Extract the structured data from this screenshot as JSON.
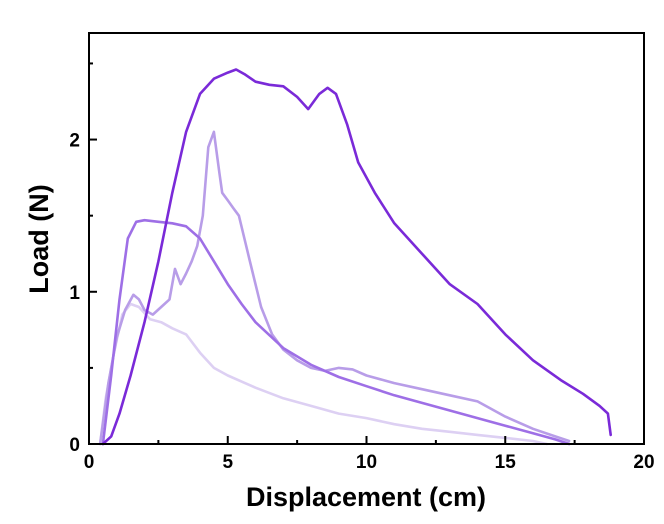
{
  "chart_data": {
    "type": "line",
    "title": "",
    "xlabel": "Displacement (cm)",
    "ylabel": "Load (N)",
    "xlim": [
      0,
      20
    ],
    "ylim": [
      0,
      2.7
    ],
    "xticks": [
      0,
      5,
      10,
      15,
      20
    ],
    "yticks": [
      0,
      1,
      2
    ],
    "grid": false,
    "legend": "none",
    "series": [
      {
        "color": "#ddd0f3",
        "x": [
          0.4,
          0.6,
          0.9,
          1.2,
          1.5,
          1.8,
          2.2,
          2.6,
          3.0,
          3.5,
          4.0,
          4.5,
          5.0,
          6.0,
          7.0,
          8.0,
          9.0,
          10.0,
          11.0,
          12.0,
          13.0,
          14.0,
          15.0,
          16.0,
          16.5
        ],
        "y": [
          0.0,
          0.3,
          0.6,
          0.85,
          0.92,
          0.9,
          0.82,
          0.8,
          0.76,
          0.72,
          0.6,
          0.5,
          0.45,
          0.37,
          0.3,
          0.25,
          0.2,
          0.17,
          0.13,
          0.1,
          0.08,
          0.06,
          0.04,
          0.02,
          0.0
        ]
      },
      {
        "color": "#b89de8",
        "x": [
          0.4,
          0.7,
          1.0,
          1.3,
          1.6,
          1.8,
          2.0,
          2.3,
          2.6,
          2.9,
          3.1,
          3.3,
          3.5,
          3.7,
          3.9,
          4.1,
          4.3,
          4.5,
          4.7,
          4.8,
          5.0,
          5.2,
          5.4,
          5.6,
          5.8,
          6.2,
          6.6,
          7.0,
          7.5,
          8.0,
          8.5,
          9.0,
          9.5,
          10.0,
          11.0,
          12.0,
          13.0,
          14.0,
          15.0,
          16.0,
          16.8,
          17.3
        ],
        "y": [
          0.0,
          0.4,
          0.7,
          0.88,
          0.98,
          0.95,
          0.88,
          0.85,
          0.9,
          0.95,
          1.15,
          1.05,
          1.12,
          1.2,
          1.3,
          1.5,
          1.95,
          2.05,
          1.78,
          1.65,
          1.6,
          1.55,
          1.5,
          1.35,
          1.2,
          0.9,
          0.72,
          0.62,
          0.55,
          0.5,
          0.48,
          0.5,
          0.49,
          0.45,
          0.4,
          0.36,
          0.32,
          0.28,
          0.18,
          0.1,
          0.05,
          0.02
        ]
      },
      {
        "color": "#9e6fe6",
        "x": [
          0.5,
          0.8,
          1.1,
          1.4,
          1.7,
          2.0,
          2.5,
          3.0,
          3.5,
          4.0,
          4.5,
          5.0,
          5.5,
          6.0,
          7.0,
          8.0,
          9.0,
          10.0,
          11.0,
          12.0,
          13.0,
          14.0,
          15.0,
          16.0,
          16.8,
          17.3
        ],
        "y": [
          0.0,
          0.45,
          0.95,
          1.35,
          1.46,
          1.47,
          1.46,
          1.45,
          1.43,
          1.35,
          1.2,
          1.05,
          0.92,
          0.8,
          0.63,
          0.52,
          0.44,
          0.38,
          0.32,
          0.27,
          0.22,
          0.17,
          0.12,
          0.07,
          0.03,
          0.0
        ]
      },
      {
        "color": "#7a2ad8",
        "x": [
          0.5,
          0.8,
          1.1,
          1.5,
          2.0,
          2.5,
          3.0,
          3.5,
          4.0,
          4.5,
          5.0,
          5.3,
          5.6,
          6.0,
          6.5,
          7.0,
          7.5,
          7.9,
          8.3,
          8.6,
          8.9,
          9.3,
          9.7,
          10.3,
          11.0,
          12.0,
          13.0,
          14.0,
          15.0,
          16.0,
          17.0,
          17.8,
          18.4,
          18.7,
          18.8
        ],
        "y": [
          0.0,
          0.05,
          0.2,
          0.45,
          0.8,
          1.2,
          1.65,
          2.05,
          2.3,
          2.4,
          2.44,
          2.46,
          2.43,
          2.38,
          2.36,
          2.35,
          2.28,
          2.2,
          2.3,
          2.34,
          2.3,
          2.1,
          1.85,
          1.65,
          1.45,
          1.25,
          1.05,
          0.92,
          0.72,
          0.55,
          0.42,
          0.33,
          0.25,
          0.2,
          0.06
        ]
      }
    ]
  }
}
